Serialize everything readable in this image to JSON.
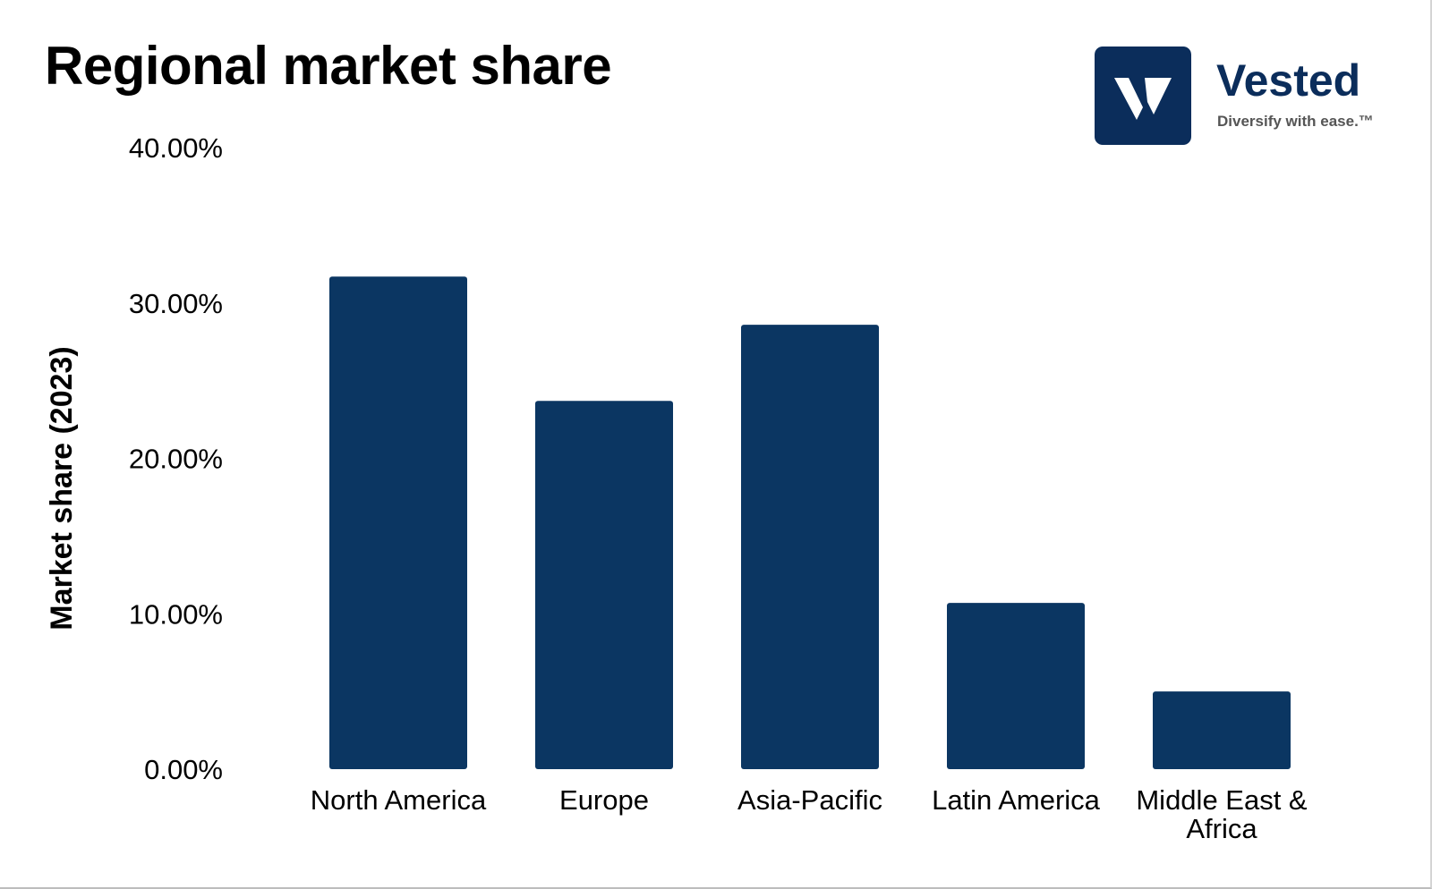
{
  "logo": {
    "name": "Vested",
    "tagline": "Diversify with ease.™",
    "brand_color": "#0b2d5b",
    "mark_color": "#0b2d5b",
    "mark_glyph_color": "#ffffff"
  },
  "chart_data": {
    "type": "bar",
    "title": "Regional market share",
    "ylabel": "Market share (2023)",
    "xlabel": "",
    "categories": [
      "North America",
      "Europe",
      "Asia-Pacific",
      "Latin America",
      "Middle East & Africa"
    ],
    "category_lines": [
      [
        "North America"
      ],
      [
        "Europe"
      ],
      [
        "Asia-Pacific"
      ],
      [
        "Latin America"
      ],
      [
        "Middle East &",
        "Africa"
      ]
    ],
    "values": [
      31.7,
      23.7,
      28.6,
      10.7,
      5.0
    ],
    "value_unit": "%",
    "ylim": [
      0,
      40
    ],
    "yticks": [
      0,
      10,
      20,
      30,
      40
    ],
    "ytick_labels": [
      "0.00%",
      "10.00%",
      "20.00%",
      "30.00%",
      "40.00%"
    ],
    "bar_color": "#0b3662",
    "grid": false,
    "legend": "none"
  }
}
